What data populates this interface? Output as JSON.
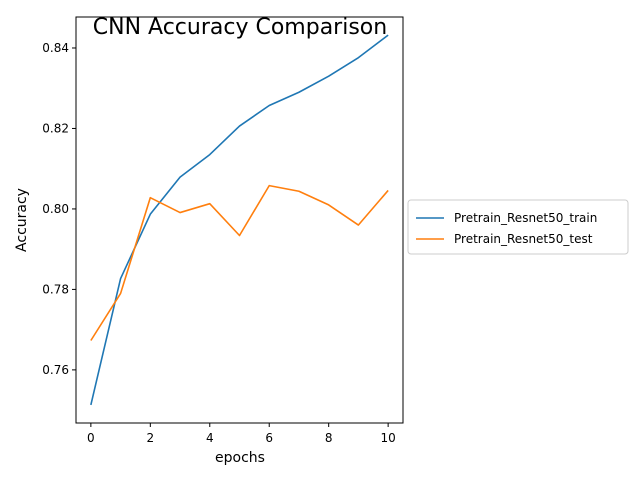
{
  "chart_data": {
    "type": "line",
    "title": "CNN Accuracy Comparison",
    "xlabel": "epochs",
    "ylabel": "Accuracy",
    "xlim": [
      -0.5,
      10.5
    ],
    "ylim": [
      0.7468,
      0.8477
    ],
    "xticks": [
      0,
      2,
      4,
      6,
      8,
      10
    ],
    "xtick_labels": [
      "0",
      "2",
      "4",
      "6",
      "8",
      "10"
    ],
    "yticks": [
      0.76,
      0.78,
      0.8,
      0.82,
      0.84
    ],
    "ytick_labels": [
      "0.76",
      "0.78",
      "0.80",
      "0.82",
      "0.84"
    ],
    "grid": false,
    "legend_position": "outside-right",
    "x": [
      0,
      1,
      2,
      3,
      4,
      5,
      6,
      7,
      8,
      9,
      10
    ],
    "series": [
      {
        "name": "Pretrain_Resnet50_train",
        "color": "#1f77b4",
        "values": [
          0.7513,
          0.7827,
          0.7987,
          0.8079,
          0.8135,
          0.8206,
          0.8257,
          0.829,
          0.833,
          0.8376,
          0.8432
        ]
      },
      {
        "name": "Pretrain_Resnet50_test",
        "color": "#ff7f0e",
        "values": [
          0.7673,
          0.779,
          0.8028,
          0.7991,
          0.8013,
          0.7934,
          0.8058,
          0.8044,
          0.801,
          0.796,
          0.8046
        ]
      }
    ]
  }
}
